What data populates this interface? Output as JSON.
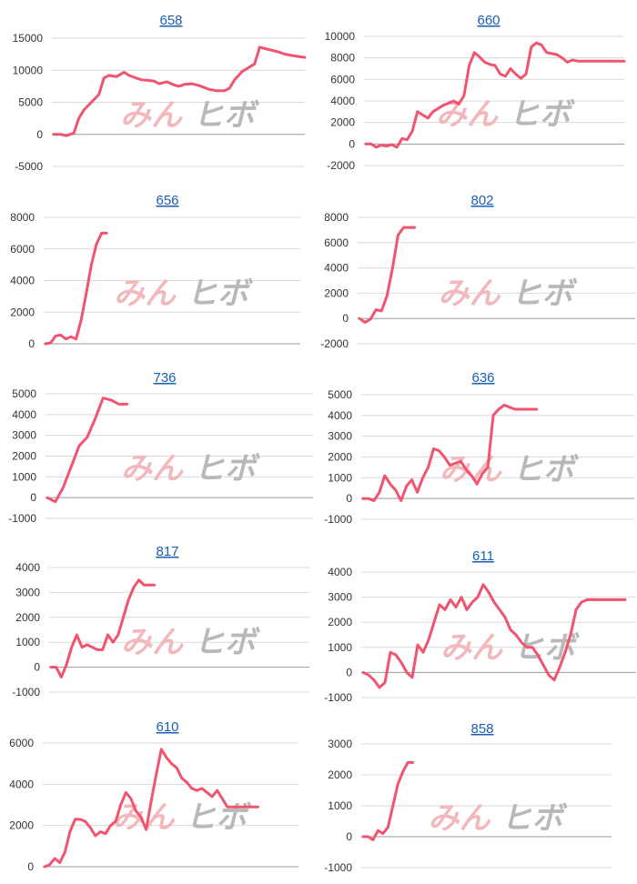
{
  "series_color": "#f0546e",
  "watermark": {
    "text_left": "みん",
    "text_right": "ヒボ",
    "color_left": "#f2b8bc",
    "color_right": "#b8b8b8"
  },
  "chart_data": [
    {
      "type": "line",
      "title": "658",
      "ylim": [
        -5000,
        15000
      ],
      "ticks": [
        15000,
        10000,
        5000,
        0,
        -5000
      ],
      "xmax": 100,
      "x": [
        0,
        3,
        5,
        8,
        10,
        12,
        15,
        18,
        20,
        22,
        25,
        28,
        30,
        32,
        35,
        38,
        40,
        42,
        45,
        48,
        50,
        52,
        55,
        58,
        60,
        62,
        65,
        68,
        70,
        72,
        75,
        78,
        80,
        82,
        85,
        88,
        90,
        92,
        95,
        98,
        100
      ],
      "values": [
        0,
        0,
        -200,
        200,
        2500,
        3800,
        5000,
        6200,
        8800,
        9200,
        9000,
        9700,
        9200,
        8900,
        8500,
        8400,
        8300,
        7900,
        8200,
        7700,
        7500,
        7800,
        7900,
        7600,
        7300,
        7000,
        6800,
        6800,
        7200,
        8500,
        9800,
        10500,
        11000,
        13600,
        13300,
        13000,
        12800,
        12500,
        12300,
        12100,
        12000
      ]
    },
    {
      "type": "line",
      "title": "660",
      "ylim": [
        -2000,
        10000
      ],
      "ticks": [
        10000,
        8000,
        6000,
        4000,
        2000,
        0,
        -2000
      ],
      "xmax": 100,
      "x": [
        0,
        2,
        4,
        6,
        8,
        10,
        12,
        14,
        16,
        18,
        20,
        22,
        24,
        26,
        28,
        30,
        32,
        34,
        36,
        38,
        40,
        42,
        44,
        46,
        48,
        50,
        52,
        54,
        56,
        58,
        60,
        62,
        64,
        66,
        68,
        70,
        72,
        74,
        76,
        78,
        80,
        82,
        84,
        86,
        88,
        90,
        92,
        94,
        96,
        98,
        100
      ],
      "values": [
        0,
        0,
        -300,
        -100,
        -200,
        -50,
        -300,
        500,
        400,
        1200,
        3000,
        2700,
        2400,
        3000,
        3300,
        3600,
        3800,
        4000,
        3700,
        4500,
        7300,
        8500,
        8100,
        7600,
        7400,
        7300,
        6500,
        6300,
        7000,
        6500,
        6100,
        6500,
        9000,
        9400,
        9200,
        8500,
        8400,
        8300,
        8000,
        7600,
        7800,
        7700,
        7700,
        7700,
        7700,
        7700,
        7700,
        7700,
        7700,
        7700,
        7700
      ]
    },
    {
      "type": "line",
      "title": "656",
      "ylim": [
        0,
        8000
      ],
      "ticks": [
        8000,
        6000,
        4000,
        2000,
        0
      ],
      "xmax": 100,
      "x": [
        0,
        2,
        4,
        6,
        8,
        10,
        12,
        14,
        16,
        18,
        20,
        22,
        24
      ],
      "values": [
        0,
        50,
        500,
        550,
        300,
        450,
        300,
        1500,
        3200,
        5000,
        6300,
        7000,
        7000
      ]
    },
    {
      "type": "line",
      "title": "802",
      "ylim": [
        -2000,
        8000
      ],
      "ticks": [
        8000,
        6000,
        4000,
        2000,
        0,
        -2000
      ],
      "xmax": 100,
      "x": [
        0,
        2,
        4,
        6,
        8,
        10,
        12,
        14,
        16,
        18,
        20
      ],
      "values": [
        0,
        -300,
        -50,
        700,
        600,
        1800,
        4000,
        6600,
        7200,
        7200,
        7200
      ]
    },
    {
      "type": "line",
      "title": "736",
      "ylim": [
        -1000,
        5000
      ],
      "ticks": [
        5000,
        4000,
        3000,
        2000,
        1000,
        0,
        -1000
      ],
      "xmax": 100,
      "x": [
        0,
        3,
        6,
        9,
        12,
        15,
        18,
        21,
        24,
        27,
        30
      ],
      "values": [
        0,
        -200,
        500,
        1500,
        2500,
        2900,
        3800,
        4800,
        4700,
        4500,
        4500
      ]
    },
    {
      "type": "line",
      "title": "636",
      "ylim": [
        -1000,
        5000
      ],
      "ticks": [
        5000,
        4000,
        3000,
        2000,
        1000,
        0,
        -1000
      ],
      "xmax": 100,
      "x": [
        0,
        2,
        4,
        6,
        8,
        10,
        12,
        14,
        16,
        18,
        20,
        22,
        24,
        26,
        28,
        30,
        32,
        34,
        36,
        38,
        40,
        42,
        44,
        46,
        48,
        50,
        52,
        54,
        56,
        58,
        60,
        62,
        64
      ],
      "values": [
        0,
        0,
        -100,
        300,
        1100,
        700,
        400,
        -100,
        600,
        900,
        300,
        1000,
        1500,
        2400,
        2300,
        2000,
        1600,
        1700,
        1800,
        1400,
        1100,
        700,
        1200,
        1500,
        4000,
        4300,
        4500,
        4400,
        4300,
        4300,
        4300,
        4300,
        4300
      ]
    },
    {
      "type": "line",
      "title": "817",
      "ylim": [
        -1000,
        4000
      ],
      "ticks": [
        4000,
        3000,
        2000,
        1000,
        0,
        -1000
      ],
      "xmax": 100,
      "x": [
        0,
        2,
        4,
        6,
        8,
        10,
        12,
        14,
        16,
        18,
        20,
        22,
        24,
        26,
        28,
        30,
        32,
        34,
        36,
        38,
        40
      ],
      "values": [
        0,
        0,
        -400,
        100,
        800,
        1300,
        800,
        900,
        800,
        700,
        700,
        1300,
        1000,
        1300,
        2000,
        2700,
        3200,
        3500,
        3300,
        3300,
        3300
      ]
    },
    {
      "type": "line",
      "title": "611",
      "ylim": [
        -1000,
        4000
      ],
      "ticks": [
        4000,
        3000,
        2000,
        1000,
        0,
        -1000
      ],
      "xmax": 100,
      "x": [
        0,
        2,
        4,
        6,
        8,
        10,
        12,
        14,
        16,
        18,
        20,
        22,
        24,
        26,
        28,
        30,
        32,
        34,
        36,
        38,
        40,
        42,
        44,
        46,
        48,
        50,
        52,
        54,
        56,
        58,
        60,
        62,
        64,
        66,
        68,
        70,
        72,
        74,
        76,
        78,
        80,
        82,
        84,
        86,
        88,
        90,
        92,
        94,
        96
      ],
      "values": [
        0,
        -100,
        -300,
        -600,
        -400,
        800,
        700,
        400,
        0,
        -200,
        1100,
        800,
        1300,
        2000,
        2700,
        2500,
        2900,
        2600,
        3000,
        2500,
        2800,
        3000,
        3500,
        3200,
        2800,
        2500,
        2200,
        1700,
        1500,
        1200,
        1000,
        1000,
        700,
        300,
        -100,
        -300,
        200,
        800,
        1500,
        2500,
        2800,
        2900,
        2900,
        2900,
        2900,
        2900,
        2900,
        2900,
        2900
      ]
    },
    {
      "type": "line",
      "title": "610",
      "ylim": [
        0,
        6000
      ],
      "ticks": [
        6000,
        4000,
        2000,
        0
      ],
      "xmax": 100,
      "x": [
        0,
        2,
        4,
        6,
        8,
        10,
        12,
        14,
        16,
        18,
        20,
        22,
        24,
        26,
        28,
        30,
        32,
        34,
        36,
        38,
        40,
        42,
        44,
        46,
        48,
        50,
        52,
        54,
        56,
        58,
        60,
        62,
        64,
        66,
        68,
        70,
        72,
        74,
        76,
        78,
        80,
        82,
        84
      ],
      "values": [
        0,
        100,
        400,
        200,
        700,
        1700,
        2300,
        2300,
        2200,
        1900,
        1500,
        1700,
        1600,
        2000,
        2200,
        3000,
        3600,
        3300,
        2700,
        2400,
        1800,
        3200,
        4500,
        5700,
        5300,
        5000,
        4800,
        4300,
        4100,
        3800,
        3700,
        3800,
        3600,
        3400,
        3700,
        3300,
        2900,
        2900,
        2900,
        2900,
        2900,
        2900,
        2900
      ]
    },
    {
      "type": "line",
      "title": "858",
      "ylim": [
        -1000,
        3000
      ],
      "ticks": [
        3000,
        2000,
        1000,
        0,
        -1000
      ],
      "xmax": 100,
      "x": [
        0,
        2,
        4,
        6,
        8,
        10,
        12,
        14,
        16,
        18,
        20
      ],
      "values": [
        0,
        0,
        -100,
        200,
        100,
        300,
        1000,
        1700,
        2100,
        2400,
        2400
      ]
    }
  ]
}
